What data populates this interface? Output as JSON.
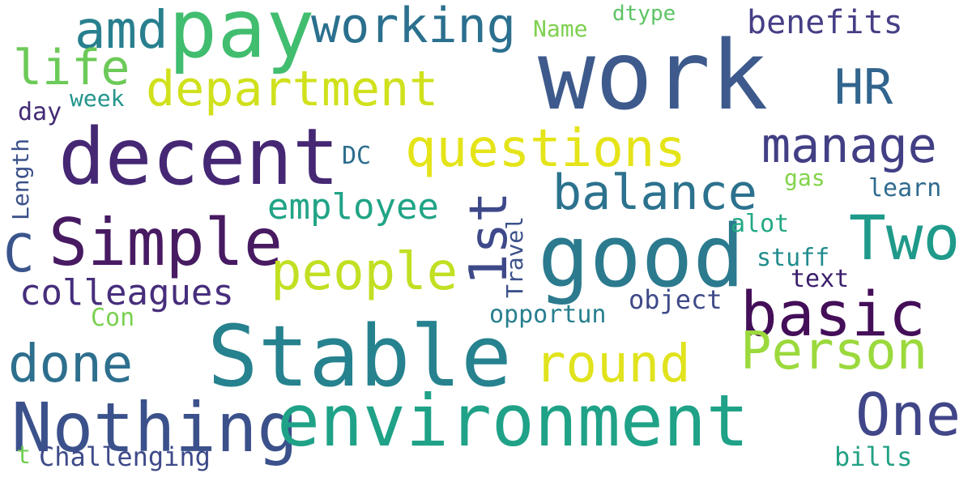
{
  "words": [
    {
      "text": "work",
      "color": "#3e5a8c"
    },
    {
      "text": "pay",
      "color": "#41bd6f"
    },
    {
      "text": "amd",
      "color": "#287f8e"
    },
    {
      "text": "working",
      "color": "#2b708e"
    },
    {
      "text": "benefits",
      "color": "#463f86"
    },
    {
      "text": "dtype",
      "color": "#5cc463"
    },
    {
      "text": "Name",
      "color": "#7ed04f"
    },
    {
      "text": "life",
      "color": "#6cca58"
    },
    {
      "text": "department",
      "color": "#d0e11c"
    },
    {
      "text": "HR",
      "color": "#31658e"
    },
    {
      "text": "week",
      "color": "#22958b"
    },
    {
      "text": "day",
      "color": "#432b75"
    },
    {
      "text": "decent",
      "color": "#452774"
    },
    {
      "text": "questions",
      "color": "#e4e418"
    },
    {
      "text": "manage",
      "color": "#423f85"
    },
    {
      "text": "DC",
      "color": "#2c6f8e"
    },
    {
      "text": "Length",
      "color": "#3b518b"
    },
    {
      "text": "balance",
      "color": "#2c728e"
    },
    {
      "text": "gas",
      "color": "#83d34b"
    },
    {
      "text": "learn",
      "color": "#2f6b8e"
    },
    {
      "text": "employee",
      "color": "#20a486"
    },
    {
      "text": "1st",
      "color": "#3e4989"
    },
    {
      "text": "Travel",
      "color": "#3b518b"
    },
    {
      "text": "C",
      "color": "#3a548c"
    },
    {
      "text": "Simple",
      "color": "#471a62"
    },
    {
      "text": "good",
      "color": "#2b7a8e"
    },
    {
      "text": "Two",
      "color": "#1f9a8a"
    },
    {
      "text": "alot",
      "color": "#22a884"
    },
    {
      "text": "stuff",
      "color": "#228c8d"
    },
    {
      "text": "people",
      "color": "#c2df23"
    },
    {
      "text": "text",
      "color": "#3a1d6b"
    },
    {
      "text": "colleagues",
      "color": "#472e7c"
    },
    {
      "text": "basic",
      "color": "#440e58"
    },
    {
      "text": "object",
      "color": "#3e4a89"
    },
    {
      "text": "Con",
      "color": "#7ad151"
    },
    {
      "text": "opportun",
      "color": "#277f8e"
    },
    {
      "text": "Person",
      "color": "#9bd93c"
    },
    {
      "text": "done",
      "color": "#2e6f8e"
    },
    {
      "text": "Stable",
      "color": "#26828e"
    },
    {
      "text": "round",
      "color": "#e0e31d"
    },
    {
      "text": "Nothing",
      "color": "#3b518b"
    },
    {
      "text": "environment",
      "color": "#1fa287"
    },
    {
      "text": "One",
      "color": "#404688"
    },
    {
      "text": "bills",
      "color": "#23a083"
    },
    {
      "text": "t",
      "color": "#71ce55"
    },
    {
      "text": "Challenging",
      "color": "#3e4a89"
    }
  ]
}
